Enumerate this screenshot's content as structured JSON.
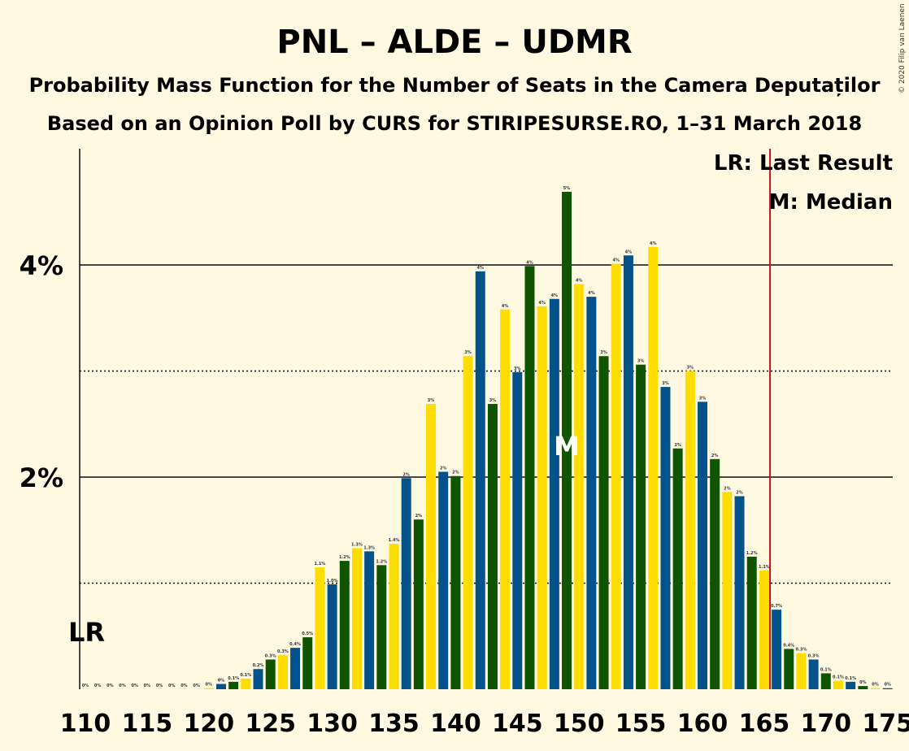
{
  "title": "PNL – ALDE – UDMR",
  "subtitle1": "Probability Mass Function for the Number of Seats in the Camera Deputaților",
  "subtitle2": "Based on an Opinion Poll by CURS for STIRIPESURSE.RO, 1–31 March 2018",
  "copyright": "© 2020 Filip van Laenen",
  "legend": {
    "lr": "LR: Last Result",
    "median": "M: Median"
  },
  "lr_mark": "LR",
  "median_mark": "M",
  "colors": {
    "background": "#fff9e2",
    "series": [
      "#0f5500",
      "#ffdd00",
      "#03538a"
    ],
    "last_result_line": "#c0141e"
  },
  "chart_data": {
    "type": "bar",
    "xlim": [
      110,
      175
    ],
    "ylim": [
      0,
      5
    ],
    "yticks": [
      {
        "value": 2,
        "label": "2%"
      },
      {
        "value": 4,
        "label": "4%"
      }
    ],
    "yminor": [
      1,
      3
    ],
    "xticks": [
      110,
      115,
      120,
      125,
      130,
      135,
      140,
      145,
      150,
      155,
      160,
      165,
      170,
      175
    ],
    "last_result": 166,
    "median": 149,
    "x": [
      110,
      111,
      112,
      113,
      114,
      115,
      116,
      117,
      118,
      119,
      120,
      121,
      122,
      123,
      124,
      125,
      126,
      127,
      128,
      129,
      130,
      131,
      132,
      133,
      134,
      135,
      136,
      137,
      138,
      139,
      140,
      141,
      142,
      143,
      144,
      145,
      146,
      147,
      148,
      149,
      150,
      151,
      152,
      153,
      154,
      155,
      156,
      157,
      158,
      159,
      160,
      161,
      162,
      163,
      164,
      165,
      166,
      167,
      168,
      169,
      170,
      171,
      172,
      173,
      174,
      175
    ],
    "values": [
      0,
      0,
      0,
      0,
      0,
      0,
      0,
      0,
      0,
      0,
      0.01,
      0.05,
      0.07,
      0.1,
      0.19,
      0.28,
      0.32,
      0.39,
      0.49,
      1.15,
      0.99,
      1.21,
      1.33,
      1.3,
      1.17,
      1.37,
      1.99,
      1.6,
      2.69,
      2.05,
      2.01,
      3.14,
      3.94,
      2.69,
      3.58,
      2.99,
      3.99,
      3.61,
      3.68,
      4.69,
      3.82,
      3.7,
      3.14,
      4.01,
      4.09,
      3.06,
      4.17,
      2.85,
      2.27,
      3.0,
      2.71,
      2.17,
      1.86,
      1.82,
      1.25,
      1.12,
      0.75,
      0.38,
      0.34,
      0.28,
      0.15,
      0.08,
      0.07,
      0.03,
      0.01,
      0.01
    ],
    "labels": [
      "0%",
      "0%",
      "0%",
      "0%",
      "0%",
      "0%",
      "0%",
      "0%",
      "0%",
      "0%",
      "0%",
      "0%",
      "0.1%",
      "0.1%",
      "0.2%",
      "0.3%",
      "0.3%",
      "0.4%",
      "0.5%",
      "1.1%",
      "1.0%",
      "1.2%",
      "1.3%",
      "1.3%",
      "1.2%",
      "1.4%",
      "2%",
      "2%",
      "3%",
      "2%",
      "2%",
      "3%",
      "4%",
      "3%",
      "4%",
      "3%",
      "4%",
      "4%",
      "4%",
      "5%",
      "4%",
      "4%",
      "3%",
      "4%",
      "4%",
      "3%",
      "4%",
      "3%",
      "2%",
      "3%",
      "3%",
      "2%",
      "2%",
      "2%",
      "1.2%",
      "1.1%",
      "0.7%",
      "0.4%",
      "0.3%",
      "0.3%",
      "0.1%",
      "0.1%",
      "0.1%",
      "0%",
      "0%",
      "0%"
    ]
  }
}
